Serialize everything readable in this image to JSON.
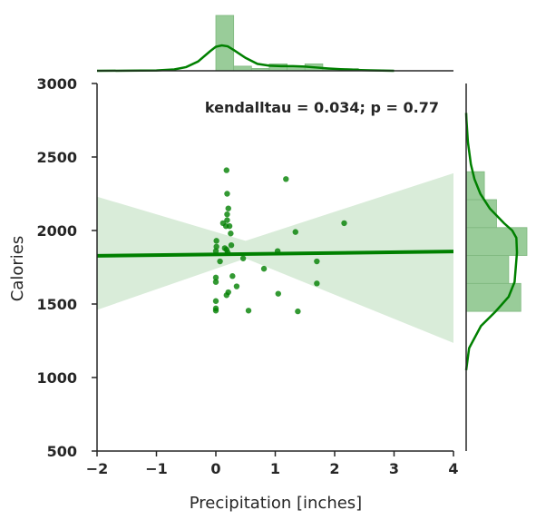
{
  "chart_data": {
    "type": "scatter",
    "title": "",
    "xlabel": "Precipitation [inches]",
    "ylabel": "Calories",
    "xlim": [
      -2,
      4
    ],
    "ylim": [
      500,
      3000
    ],
    "x_ticks": [
      "−2",
      "−1",
      "0",
      "1",
      "2",
      "3",
      "4"
    ],
    "y_ticks": [
      "500",
      "1000",
      "1500",
      "2000",
      "2500",
      "3000"
    ],
    "annotation": "kendalltau = 0.034; p = 0.77",
    "color": "#008000",
    "band_color": "#d9ecd9",
    "hist_color": "#99cc99",
    "points": [
      [
        0.18,
        2410
      ],
      [
        0.19,
        2250
      ],
      [
        1.18,
        2350
      ],
      [
        0.21,
        2150
      ],
      [
        0.19,
        2110
      ],
      [
        0.12,
        2050
      ],
      [
        0.19,
        2070
      ],
      [
        0.23,
        2030
      ],
      [
        0.17,
        2030
      ],
      [
        0.25,
        1980
      ],
      [
        2.16,
        2050
      ],
      [
        1.34,
        1990
      ],
      [
        0.01,
        1930
      ],
      [
        0.26,
        1900
      ],
      [
        0.01,
        1890
      ],
      [
        0.15,
        1880
      ],
      [
        0.18,
        1870
      ],
      [
        0.2,
        1850
      ],
      [
        0.0,
        1860
      ],
      [
        1.04,
        1860
      ],
      [
        0.46,
        1810
      ],
      [
        0.07,
        1790
      ],
      [
        1.7,
        1790
      ],
      [
        0.81,
        1740
      ],
      [
        0.28,
        1690
      ],
      [
        0.0,
        1680
      ],
      [
        0.0,
        1650
      ],
      [
        1.7,
        1640
      ],
      [
        0.35,
        1620
      ],
      [
        1.05,
        1570
      ],
      [
        0.21,
        1580
      ],
      [
        0.18,
        1560
      ],
      [
        0.0,
        1520
      ],
      [
        0.0,
        1470
      ],
      [
        0.0,
        1455
      ],
      [
        0.55,
        1455
      ],
      [
        1.38,
        1450
      ]
    ],
    "regression": {
      "x": [
        -2,
        4
      ],
      "y": [
        1828,
        1857
      ]
    },
    "ci_band": {
      "x": [
        -2,
        0.5,
        4
      ],
      "upper": [
        2230,
        1930,
        2390
      ],
      "lower": [
        1460,
        1810,
        1235
      ]
    },
    "top_histogram": {
      "bin_edges": [
        0,
        0.3,
        0.6,
        0.9,
        1.2,
        1.5,
        1.8,
        2.1,
        2.4
      ],
      "counts": [
        24,
        2,
        1,
        3,
        2,
        3,
        1,
        1
      ]
    },
    "top_kde": {
      "x": [
        -2,
        -1.5,
        -1,
        -0.7,
        -0.5,
        -0.3,
        -0.1,
        0,
        0.1,
        0.2,
        0.3,
        0.5,
        0.7,
        0.9,
        1.1,
        1.3,
        1.5,
        1.7,
        1.9,
        2.1,
        2.3,
        2.6,
        3.0
      ],
      "density": [
        0,
        0.002,
        0.008,
        0.03,
        0.08,
        0.2,
        0.42,
        0.52,
        0.55,
        0.53,
        0.45,
        0.28,
        0.15,
        0.11,
        0.1,
        0.1,
        0.09,
        0.07,
        0.05,
        0.035,
        0.02,
        0.01,
        0
      ]
    },
    "right_histogram": {
      "bin_edges": [
        1450,
        1640,
        1830,
        2020,
        2210,
        2400
      ],
      "counts": [
        9,
        7,
        10,
        5,
        3
      ]
    },
    "right_kde": {
      "y": [
        1050,
        1200,
        1350,
        1450,
        1550,
        1650,
        1750,
        1850,
        1950,
        2000,
        2050,
        2150,
        2250,
        2350,
        2450,
        2600,
        2750,
        2800
      ],
      "density": [
        0,
        0.05,
        0.25,
        0.5,
        0.72,
        0.82,
        0.84,
        0.86,
        0.85,
        0.78,
        0.64,
        0.4,
        0.24,
        0.14,
        0.08,
        0.03,
        0.005,
        0
      ]
    }
  }
}
